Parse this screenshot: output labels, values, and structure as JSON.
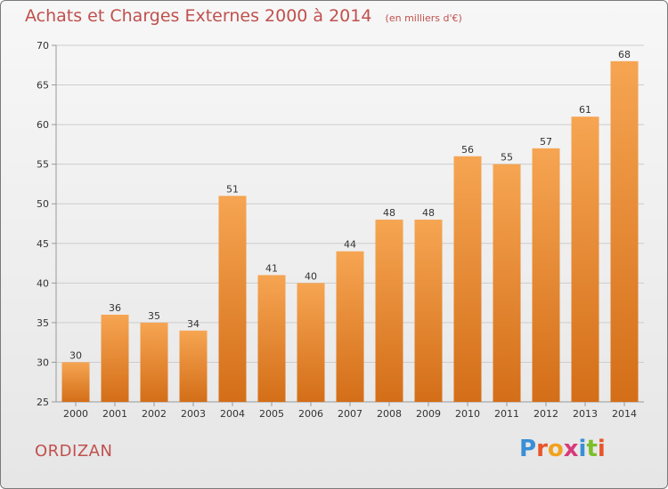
{
  "header": {
    "title": "Achats et Charges Externes 2000 à 2014",
    "subtitle": "(en milliers d'€)"
  },
  "footer": {
    "commune": "ORDIZAN",
    "logo_text": "Proxiti",
    "logo_colors": [
      "#3a8fd6",
      "#e8562a",
      "#f2a11e",
      "#d83a7a",
      "#3a8fd6",
      "#7cbf2a",
      "#e8562a"
    ]
  },
  "colors": {
    "bar_top": "#f6a552",
    "bar_bottom": "#d46e18",
    "grid": "#cccccc",
    "title": "#c0504d"
  },
  "chart_data": {
    "type": "bar",
    "categories": [
      "2000",
      "2001",
      "2002",
      "2003",
      "2004",
      "2005",
      "2006",
      "2007",
      "2008",
      "2009",
      "2010",
      "2011",
      "2012",
      "2013",
      "2014"
    ],
    "values": [
      30,
      36,
      35,
      34,
      51,
      41,
      40,
      44,
      48,
      48,
      56,
      55,
      57,
      61,
      68
    ],
    "title": "Achats et Charges Externes 2000 à 2014",
    "subtitle": "(en milliers d'€)",
    "xlabel": "",
    "ylabel": "",
    "ylim": [
      25,
      70
    ],
    "yticks": [
      25,
      30,
      35,
      40,
      45,
      50,
      55,
      60,
      65,
      70
    ],
    "grid": true,
    "data_labels": true
  }
}
